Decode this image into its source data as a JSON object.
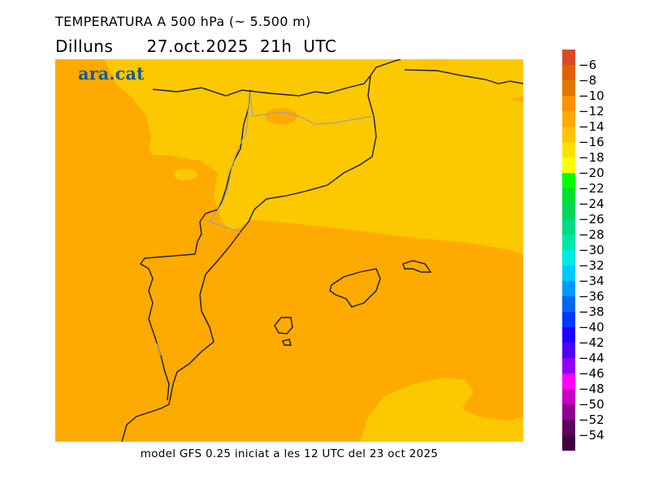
{
  "title": "TEMPERATURA A 500 hPa (~ 5.500 m)",
  "day": "Dilluns",
  "datetime": "27.oct.2025  21h  UTC",
  "logo": "ara.cat",
  "footer": "model GFS 0.25 iniciat a les 12 UTC del 23 oct 2025",
  "legend": {
    "labels": [
      "−6",
      "−8",
      "−10",
      "−12",
      "−14",
      "−16",
      "−18",
      "−20",
      "−22",
      "−24",
      "−26",
      "−28",
      "−30",
      "−32",
      "−34",
      "−36",
      "−38",
      "−40",
      "−42",
      "−44",
      "−46",
      "−48",
      "−50",
      "−52",
      "−54"
    ],
    "colors": [
      "#dc4a25",
      "#e46000",
      "#e07800",
      "#ff9000",
      "#ffaa00",
      "#ffc400",
      "#ffe000",
      "#ffff00",
      "#00ff00",
      "#00e030",
      "#00d858",
      "#00dc80",
      "#00e8a8",
      "#00e8e8",
      "#00c8ff",
      "#0098ff",
      "#0068f0",
      "#0038ff",
      "#2000ff",
      "#5000f0",
      "#9000ff",
      "#ff00ff",
      "#c800c0",
      "#900090",
      "#600060",
      "#400040"
    ]
  },
  "map_colors": {
    "orange": "#ffaa00",
    "yellow": "#fcc800",
    "coast": "#1a1a1a",
    "border": "#a0a0a0"
  }
}
